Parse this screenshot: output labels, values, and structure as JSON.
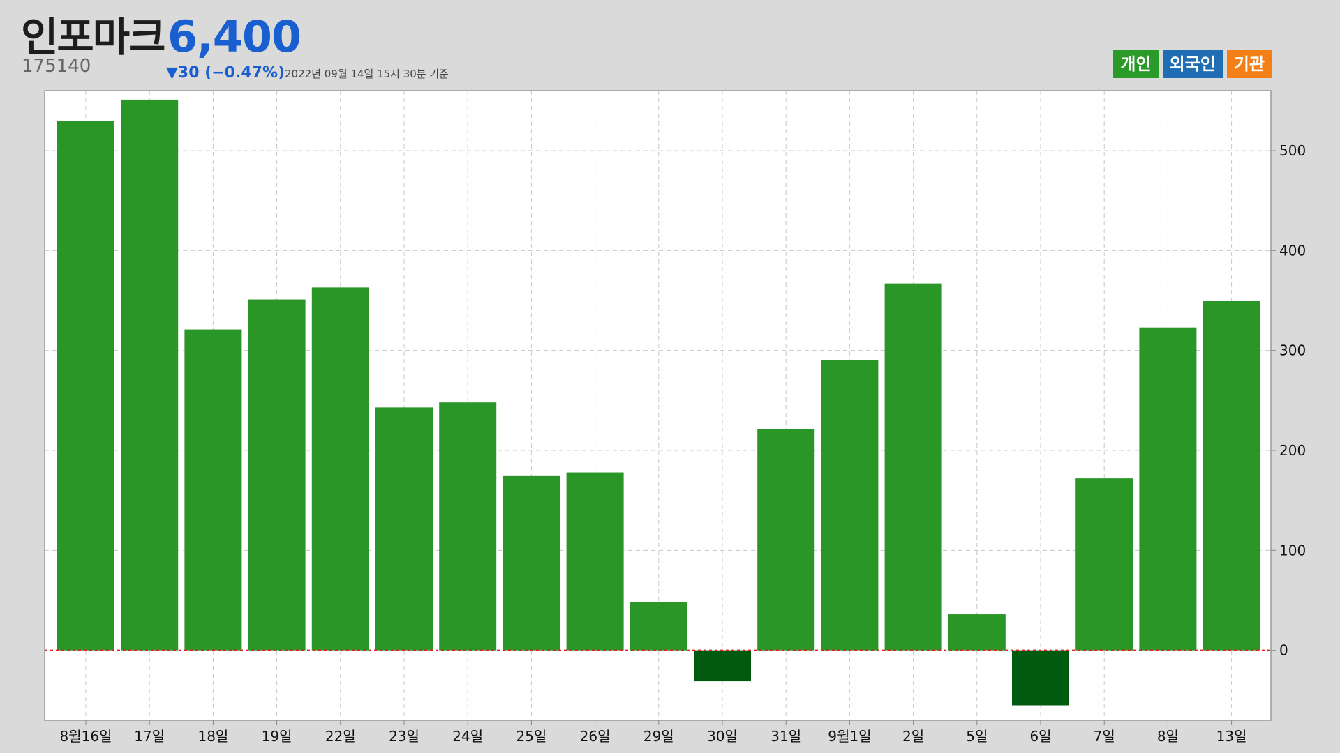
{
  "header": {
    "name": "인포마크",
    "price": "6,400",
    "code": "175140",
    "change": "▼30 (−0.47%)",
    "timestamp": "2022년 09월 14일 15시 30분 기준"
  },
  "legend": [
    {
      "label": "개인",
      "color": "#2a9a2a"
    },
    {
      "label": "외국인",
      "color": "#1f6eb4"
    },
    {
      "label": "기관",
      "color": "#f57f17"
    }
  ],
  "colors": {
    "positive_bar": "#2a9628",
    "negative_bar": "#005a10",
    "zero_line": "#e02020"
  },
  "chart_data": {
    "type": "bar",
    "title": "",
    "xlabel": "",
    "ylabel": "",
    "ylim": [
      -70,
      560
    ],
    "yticks": [
      0,
      100,
      200,
      300,
      400,
      500
    ],
    "y_axis_position": "right",
    "grid": true,
    "categories": [
      "8월16일",
      "17일",
      "18일",
      "19일",
      "22일",
      "23일",
      "24일",
      "25일",
      "26일",
      "29일",
      "30일",
      "31일",
      "9월1일",
      "2일",
      "5일",
      "6일",
      "7일",
      "8일",
      "13일"
    ],
    "series": [
      {
        "name": "개인",
        "values": [
          530,
          551,
          321,
          351,
          363,
          243,
          248,
          175,
          178,
          48,
          -31,
          221,
          290,
          367,
          36,
          -55,
          172,
          323,
          350
        ]
      }
    ]
  }
}
